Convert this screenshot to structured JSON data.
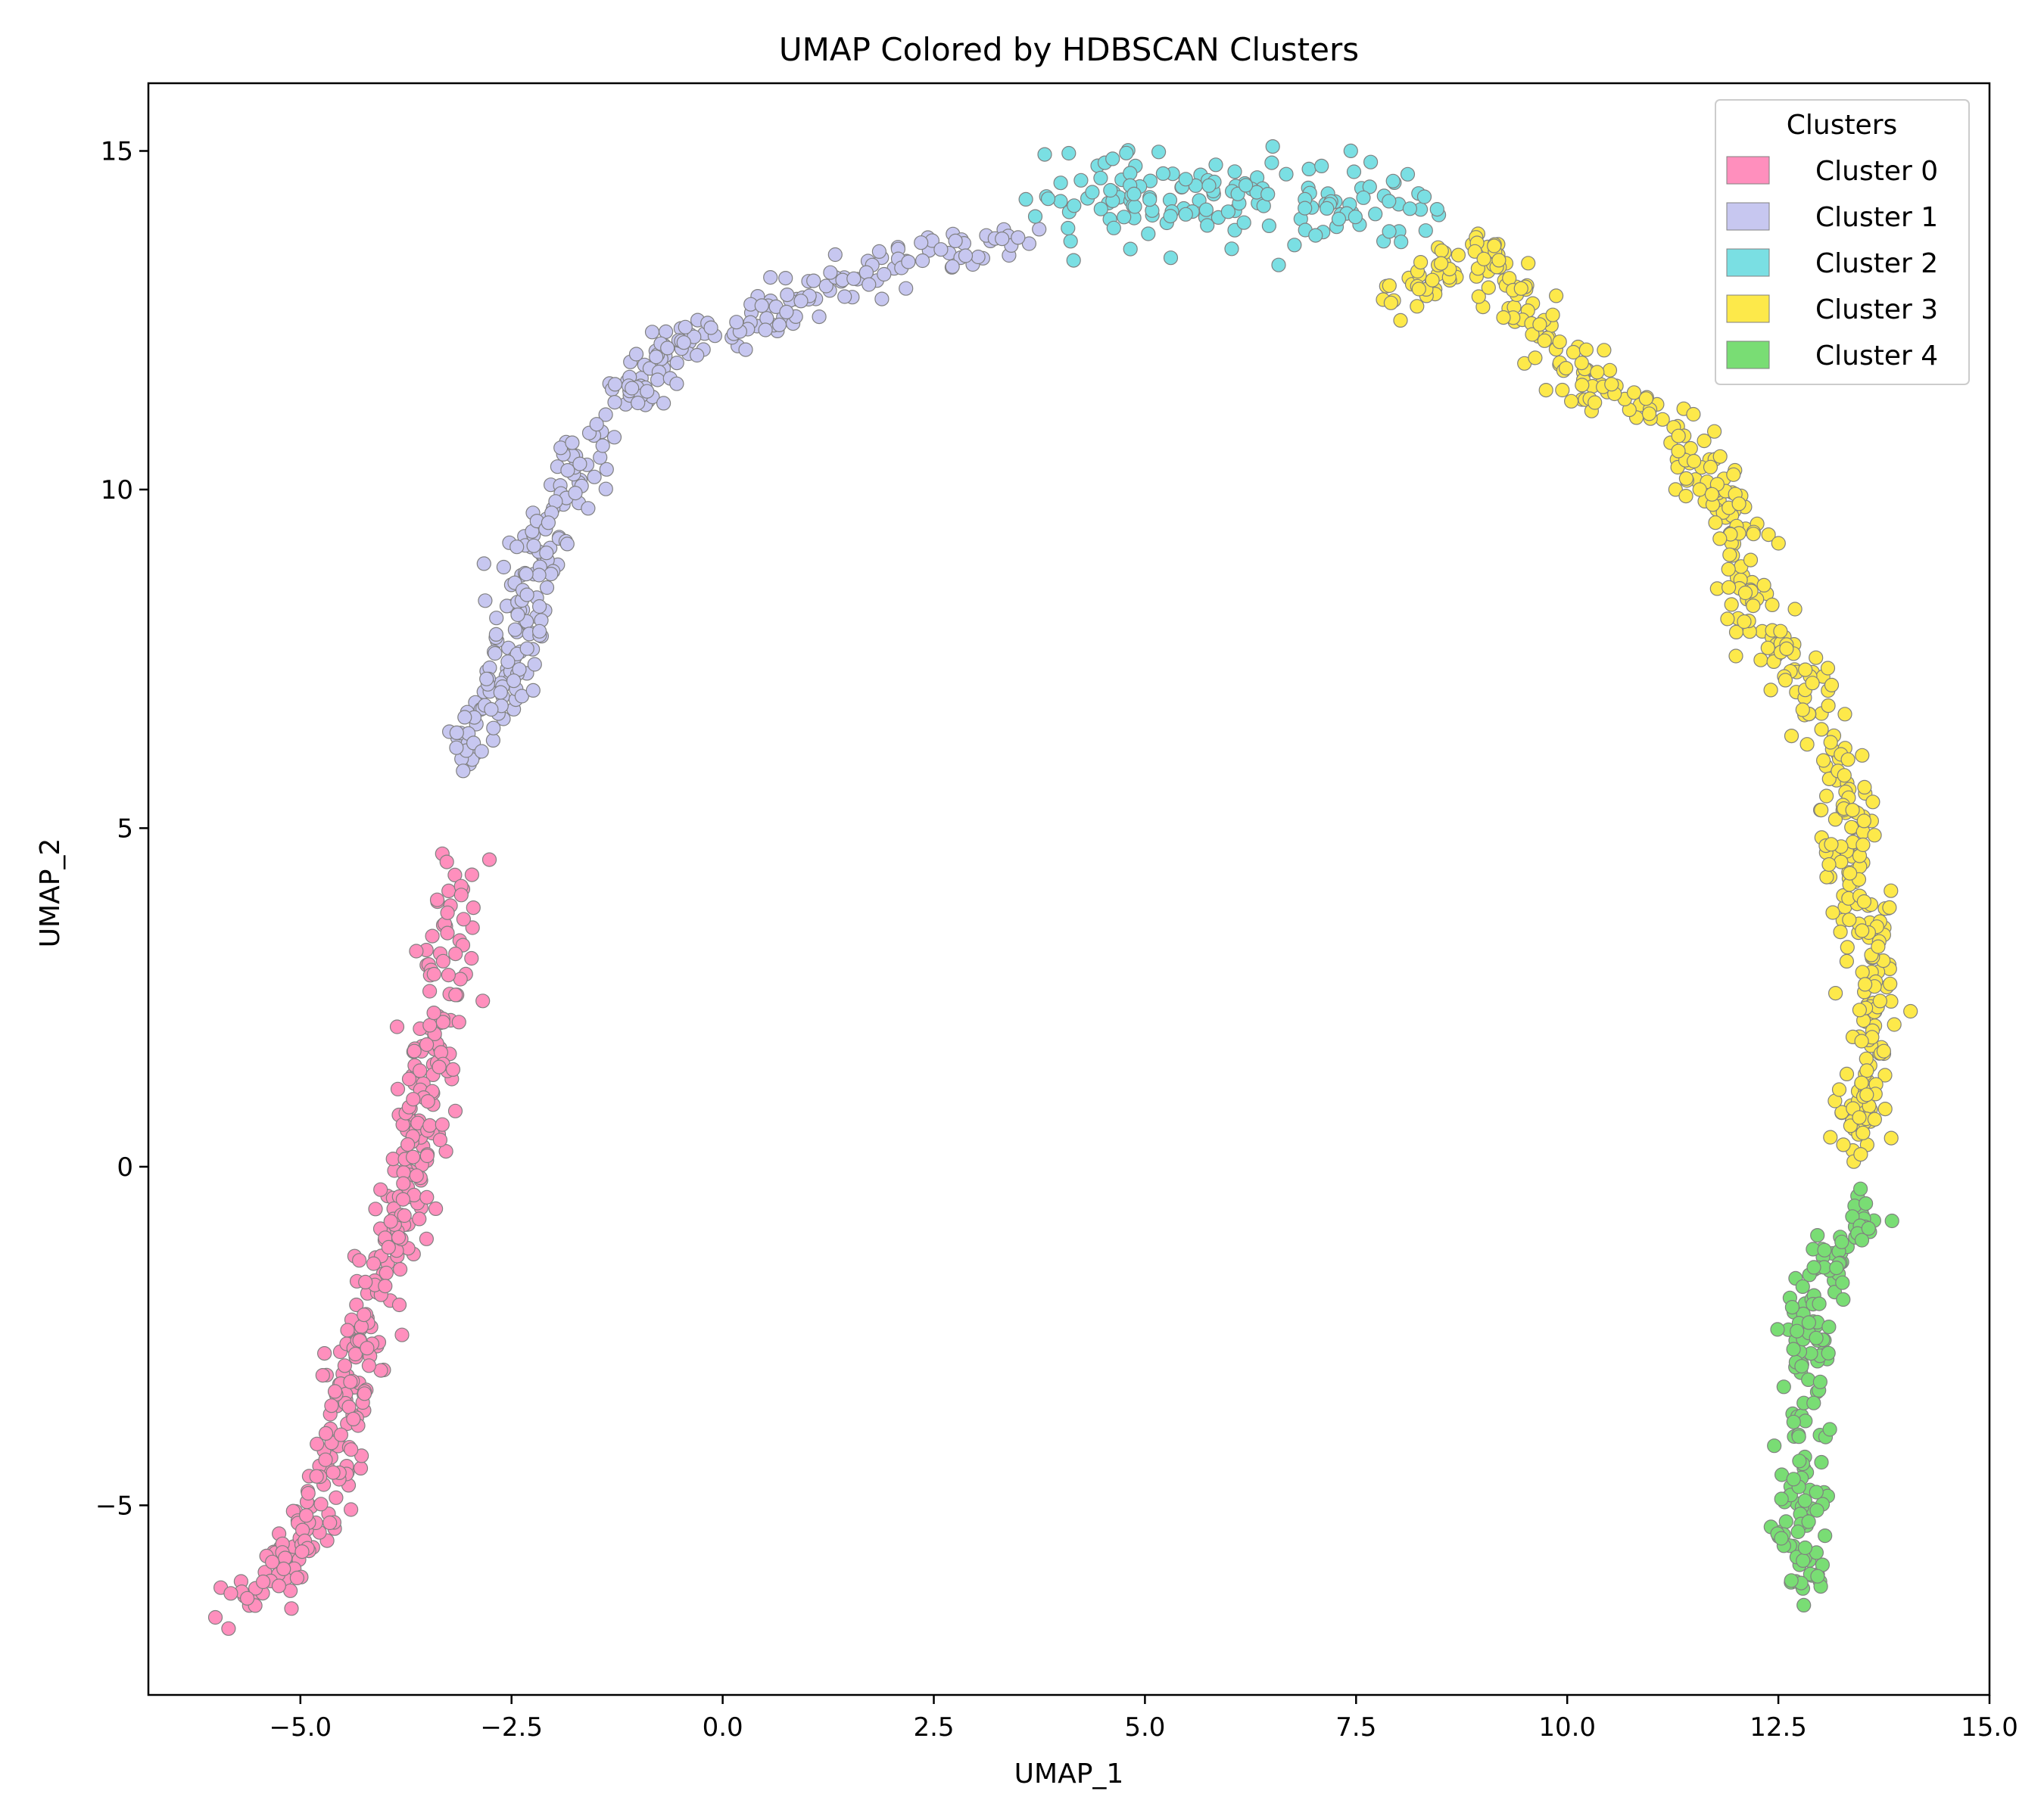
{
  "chart_data": {
    "type": "scatter",
    "title": "UMAP Colored by HDBSCAN Clusters",
    "xlabel": "UMAP_1",
    "ylabel": "UMAP_2",
    "xlim": [
      -6.8,
      15.0
    ],
    "ylim": [
      -7.8,
      16.0
    ],
    "xticks": [
      -5.0,
      -2.5,
      0.0,
      2.5,
      5.0,
      7.5,
      10.0,
      12.5,
      15.0
    ],
    "xtick_labels": [
      "−5.0",
      "−2.5",
      "0.0",
      "2.5",
      "5.0",
      "7.5",
      "10.0",
      "12.5",
      "15.0"
    ],
    "yticks": [
      -5,
      0,
      5,
      10,
      15
    ],
    "ytick_labels": [
      "−5",
      "0",
      "5",
      "10",
      "15"
    ],
    "grid": false,
    "legend": {
      "title": "Clusters",
      "placement": "top-right"
    },
    "marker_edge_color": "#808080",
    "series": [
      {
        "name": "Cluster 0",
        "color": "#ff8fbd",
        "path": [
          [
            -5.7,
            -6.6
          ],
          [
            -5.2,
            -6.0
          ],
          [
            -4.6,
            -4.5
          ],
          [
            -4.4,
            -3.0
          ],
          [
            -4.0,
            -1.5
          ],
          [
            -3.7,
            0.0
          ],
          [
            -3.5,
            1.5
          ],
          [
            -3.3,
            3.0
          ],
          [
            -3.0,
            4.4
          ]
        ],
        "count": 360
      },
      {
        "name": "Cluster 1",
        "color": "#c7c7f0",
        "path": [
          [
            -3.0,
            6.0
          ],
          [
            -2.5,
            7.3
          ],
          [
            -2.3,
            8.8
          ],
          [
            -1.8,
            10.0
          ],
          [
            -1.2,
            11.2
          ],
          [
            -0.5,
            12.2
          ],
          [
            0.5,
            12.6
          ],
          [
            1.5,
            13.2
          ],
          [
            2.5,
            13.5
          ],
          [
            3.6,
            13.7
          ]
        ],
        "count": 330
      },
      {
        "name": "Cluster 2",
        "color": "#7adfe3",
        "path": [
          [
            3.9,
            14.2
          ],
          [
            4.5,
            14.5
          ],
          [
            5.0,
            14.3
          ],
          [
            5.8,
            14.4
          ],
          [
            6.5,
            14.1
          ],
          [
            7.2,
            14.2
          ],
          [
            8.2,
            14.1
          ]
        ],
        "count": 150,
        "spread": 0.35
      },
      {
        "name": "Cluster 3",
        "color": "#fde94a",
        "path": [
          [
            8.0,
            12.8
          ],
          [
            9.0,
            13.6
          ],
          [
            9.5,
            12.5
          ],
          [
            10.3,
            11.5
          ],
          [
            11.3,
            11.0
          ],
          [
            12.0,
            9.5
          ],
          [
            12.3,
            8.0
          ],
          [
            13.0,
            7.0
          ],
          [
            13.3,
            5.5
          ],
          [
            13.4,
            4.0
          ],
          [
            13.7,
            2.5
          ],
          [
            13.5,
            1.0
          ],
          [
            13.4,
            0.2
          ]
        ],
        "count": 470
      },
      {
        "name": "Cluster 4",
        "color": "#79dd74",
        "path": [
          [
            13.6,
            -0.6
          ],
          [
            13.2,
            -1.2
          ],
          [
            12.9,
            -2.0
          ],
          [
            12.8,
            -3.5
          ],
          [
            12.75,
            -5.0
          ],
          [
            12.85,
            -6.2
          ]
        ],
        "count": 170
      }
    ]
  }
}
